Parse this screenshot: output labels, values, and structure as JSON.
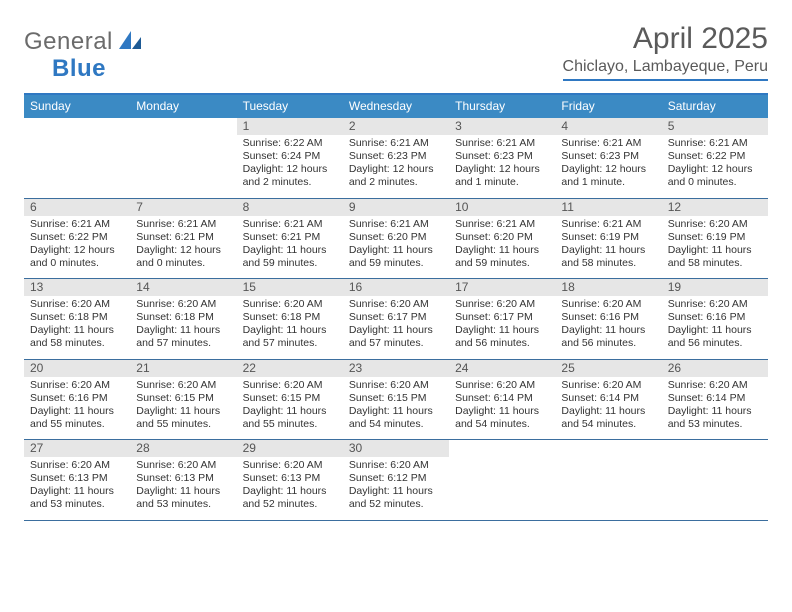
{
  "brand": {
    "part1": "General",
    "part2": "Blue"
  },
  "title": {
    "month": "April 2025",
    "location": "Chiclayo, Lambayeque, Peru"
  },
  "colors": {
    "header_bg": "#3b8ac4",
    "accent_border": "#2f78c2",
    "week_border": "#3b6e9e",
    "daynum_bg": "#e6e6e6",
    "text": "#333333",
    "title_text": "#5a5a5a",
    "logo_grey": "#6b6b6b"
  },
  "weekdays": [
    "Sunday",
    "Monday",
    "Tuesday",
    "Wednesday",
    "Thursday",
    "Friday",
    "Saturday"
  ],
  "weeks": [
    [
      null,
      null,
      {
        "n": "1",
        "sr": "Sunrise: 6:22 AM",
        "ss": "Sunset: 6:24 PM",
        "dl1": "Daylight: 12 hours",
        "dl2": "and 2 minutes."
      },
      {
        "n": "2",
        "sr": "Sunrise: 6:21 AM",
        "ss": "Sunset: 6:23 PM",
        "dl1": "Daylight: 12 hours",
        "dl2": "and 2 minutes."
      },
      {
        "n": "3",
        "sr": "Sunrise: 6:21 AM",
        "ss": "Sunset: 6:23 PM",
        "dl1": "Daylight: 12 hours",
        "dl2": "and 1 minute."
      },
      {
        "n": "4",
        "sr": "Sunrise: 6:21 AM",
        "ss": "Sunset: 6:23 PM",
        "dl1": "Daylight: 12 hours",
        "dl2": "and 1 minute."
      },
      {
        "n": "5",
        "sr": "Sunrise: 6:21 AM",
        "ss": "Sunset: 6:22 PM",
        "dl1": "Daylight: 12 hours",
        "dl2": "and 0 minutes."
      }
    ],
    [
      {
        "n": "6",
        "sr": "Sunrise: 6:21 AM",
        "ss": "Sunset: 6:22 PM",
        "dl1": "Daylight: 12 hours",
        "dl2": "and 0 minutes."
      },
      {
        "n": "7",
        "sr": "Sunrise: 6:21 AM",
        "ss": "Sunset: 6:21 PM",
        "dl1": "Daylight: 12 hours",
        "dl2": "and 0 minutes."
      },
      {
        "n": "8",
        "sr": "Sunrise: 6:21 AM",
        "ss": "Sunset: 6:21 PM",
        "dl1": "Daylight: 11 hours",
        "dl2": "and 59 minutes."
      },
      {
        "n": "9",
        "sr": "Sunrise: 6:21 AM",
        "ss": "Sunset: 6:20 PM",
        "dl1": "Daylight: 11 hours",
        "dl2": "and 59 minutes."
      },
      {
        "n": "10",
        "sr": "Sunrise: 6:21 AM",
        "ss": "Sunset: 6:20 PM",
        "dl1": "Daylight: 11 hours",
        "dl2": "and 59 minutes."
      },
      {
        "n": "11",
        "sr": "Sunrise: 6:21 AM",
        "ss": "Sunset: 6:19 PM",
        "dl1": "Daylight: 11 hours",
        "dl2": "and 58 minutes."
      },
      {
        "n": "12",
        "sr": "Sunrise: 6:20 AM",
        "ss": "Sunset: 6:19 PM",
        "dl1": "Daylight: 11 hours",
        "dl2": "and 58 minutes."
      }
    ],
    [
      {
        "n": "13",
        "sr": "Sunrise: 6:20 AM",
        "ss": "Sunset: 6:18 PM",
        "dl1": "Daylight: 11 hours",
        "dl2": "and 58 minutes."
      },
      {
        "n": "14",
        "sr": "Sunrise: 6:20 AM",
        "ss": "Sunset: 6:18 PM",
        "dl1": "Daylight: 11 hours",
        "dl2": "and 57 minutes."
      },
      {
        "n": "15",
        "sr": "Sunrise: 6:20 AM",
        "ss": "Sunset: 6:18 PM",
        "dl1": "Daylight: 11 hours",
        "dl2": "and 57 minutes."
      },
      {
        "n": "16",
        "sr": "Sunrise: 6:20 AM",
        "ss": "Sunset: 6:17 PM",
        "dl1": "Daylight: 11 hours",
        "dl2": "and 57 minutes."
      },
      {
        "n": "17",
        "sr": "Sunrise: 6:20 AM",
        "ss": "Sunset: 6:17 PM",
        "dl1": "Daylight: 11 hours",
        "dl2": "and 56 minutes."
      },
      {
        "n": "18",
        "sr": "Sunrise: 6:20 AM",
        "ss": "Sunset: 6:16 PM",
        "dl1": "Daylight: 11 hours",
        "dl2": "and 56 minutes."
      },
      {
        "n": "19",
        "sr": "Sunrise: 6:20 AM",
        "ss": "Sunset: 6:16 PM",
        "dl1": "Daylight: 11 hours",
        "dl2": "and 56 minutes."
      }
    ],
    [
      {
        "n": "20",
        "sr": "Sunrise: 6:20 AM",
        "ss": "Sunset: 6:16 PM",
        "dl1": "Daylight: 11 hours",
        "dl2": "and 55 minutes."
      },
      {
        "n": "21",
        "sr": "Sunrise: 6:20 AM",
        "ss": "Sunset: 6:15 PM",
        "dl1": "Daylight: 11 hours",
        "dl2": "and 55 minutes."
      },
      {
        "n": "22",
        "sr": "Sunrise: 6:20 AM",
        "ss": "Sunset: 6:15 PM",
        "dl1": "Daylight: 11 hours",
        "dl2": "and 55 minutes."
      },
      {
        "n": "23",
        "sr": "Sunrise: 6:20 AM",
        "ss": "Sunset: 6:15 PM",
        "dl1": "Daylight: 11 hours",
        "dl2": "and 54 minutes."
      },
      {
        "n": "24",
        "sr": "Sunrise: 6:20 AM",
        "ss": "Sunset: 6:14 PM",
        "dl1": "Daylight: 11 hours",
        "dl2": "and 54 minutes."
      },
      {
        "n": "25",
        "sr": "Sunrise: 6:20 AM",
        "ss": "Sunset: 6:14 PM",
        "dl1": "Daylight: 11 hours",
        "dl2": "and 54 minutes."
      },
      {
        "n": "26",
        "sr": "Sunrise: 6:20 AM",
        "ss": "Sunset: 6:14 PM",
        "dl1": "Daylight: 11 hours",
        "dl2": "and 53 minutes."
      }
    ],
    [
      {
        "n": "27",
        "sr": "Sunrise: 6:20 AM",
        "ss": "Sunset: 6:13 PM",
        "dl1": "Daylight: 11 hours",
        "dl2": "and 53 minutes."
      },
      {
        "n": "28",
        "sr": "Sunrise: 6:20 AM",
        "ss": "Sunset: 6:13 PM",
        "dl1": "Daylight: 11 hours",
        "dl2": "and 53 minutes."
      },
      {
        "n": "29",
        "sr": "Sunrise: 6:20 AM",
        "ss": "Sunset: 6:13 PM",
        "dl1": "Daylight: 11 hours",
        "dl2": "and 52 minutes."
      },
      {
        "n": "30",
        "sr": "Sunrise: 6:20 AM",
        "ss": "Sunset: 6:12 PM",
        "dl1": "Daylight: 11 hours",
        "dl2": "and 52 minutes."
      },
      null,
      null,
      null
    ]
  ]
}
